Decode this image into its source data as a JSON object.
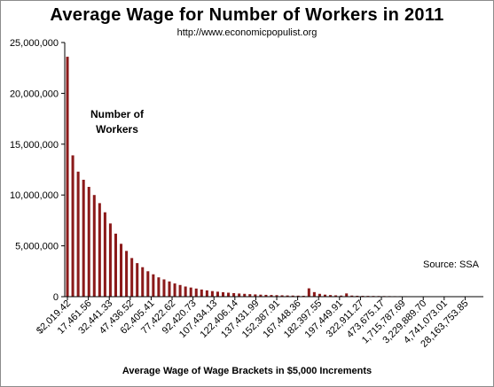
{
  "chart_data": {
    "type": "bar",
    "title": "Average Wage for Number of Workers  in 2011",
    "subtitle": "http://www.economicpopulist.org",
    "xlabel": "Average Wage of Wage Brackets  in $5,000 Increments",
    "ylabel": "",
    "series_label": "Number of Workers",
    "annotation": "Source: SSA",
    "ylim": [
      0,
      25000000
    ],
    "y_ticks": [
      "0",
      "5,000,000",
      "10,000,000",
      "15,000,000",
      "20,000,000",
      "25,000,000"
    ],
    "x_tick_labels": [
      "$2,019.42",
      "17,461.56",
      "32,441.33",
      "47,436.52",
      "62,405.41",
      "77,422.62",
      "92,420.73",
      "107,434.13",
      "122,406.14",
      "137,431.99",
      "152,387.91",
      "167,448.36",
      "182,397.55",
      "197,449.91",
      "322,911.27",
      "473,675.17",
      "1,715,787.69",
      "3,229,889.70",
      "4,741,073.01",
      "28,163,753.85"
    ],
    "grid": false,
    "legend": "none",
    "bar_color": "#8b1a1a",
    "values": [
      23600000,
      13900000,
      12300000,
      11500000,
      10800000,
      10000000,
      9200000,
      8300000,
      7200000,
      6200000,
      5200000,
      4500000,
      3800000,
      3300000,
      2900000,
      2500000,
      2200000,
      1900000,
      1700000,
      1500000,
      1300000,
      1150000,
      1000000,
      900000,
      800000,
      700000,
      620000,
      550000,
      490000,
      440000,
      390000,
      350000,
      310000,
      280000,
      250000,
      225000,
      200000,
      180000,
      165000,
      150000,
      135000,
      120000,
      110000,
      100000,
      90000,
      820000,
      450000,
      280000,
      200000,
      160000,
      130000,
      110000,
      320000,
      110000,
      90000,
      80000,
      75000,
      70000,
      65000,
      60000,
      55000,
      50000,
      48000,
      45000,
      42000,
      40000,
      38000,
      36000,
      34000,
      32000,
      30000,
      28000,
      26000,
      24000,
      22000,
      20000,
      18000,
      16000
    ]
  }
}
